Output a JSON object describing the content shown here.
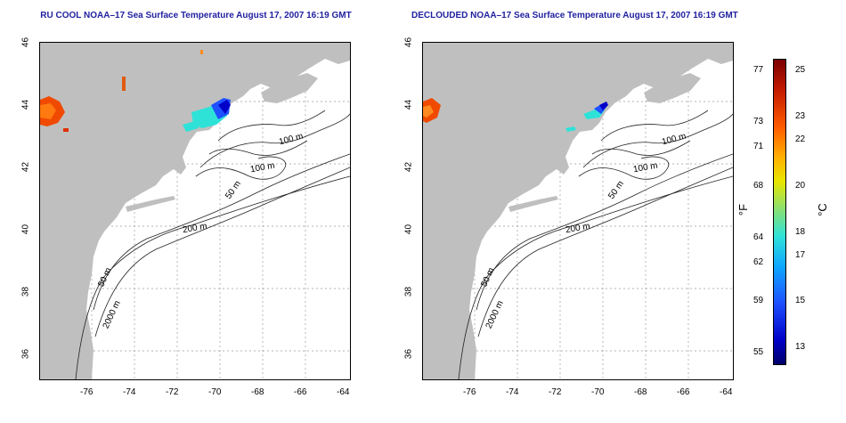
{
  "panels": [
    {
      "title": "RU COOL NOAA–17 Sea Surface Temperature August 17, 2007 16:19 GMT"
    },
    {
      "title": "DECLOUDED NOAA–17 Sea Surface Temperature August 17, 2007 16:19 GMT"
    }
  ],
  "axes": {
    "x_ticks": [
      "-76",
      "-74",
      "-72",
      "-70",
      "-68",
      "-66",
      "-64"
    ],
    "y_ticks": [
      "46",
      "44",
      "42",
      "40",
      "38",
      "36"
    ]
  },
  "contour_labels": [
    "100 m",
    "100 m",
    "50 m",
    "200 m",
    "50 m",
    "2000 m"
  ],
  "colorbar": {
    "fahrenheit_label": "°F",
    "celsius_label": "°C",
    "fahrenheit_ticks": [
      "77",
      "73",
      "71",
      "68",
      "64",
      "62",
      "59",
      "55"
    ],
    "celsius_ticks": [
      "25",
      "23",
      "22",
      "20",
      "18",
      "17",
      "15",
      "13"
    ]
  },
  "colors": {
    "land": "#bfbfbf",
    "sea": "#ffffff",
    "title": "#1f1fa0",
    "contour": "#222222"
  }
}
